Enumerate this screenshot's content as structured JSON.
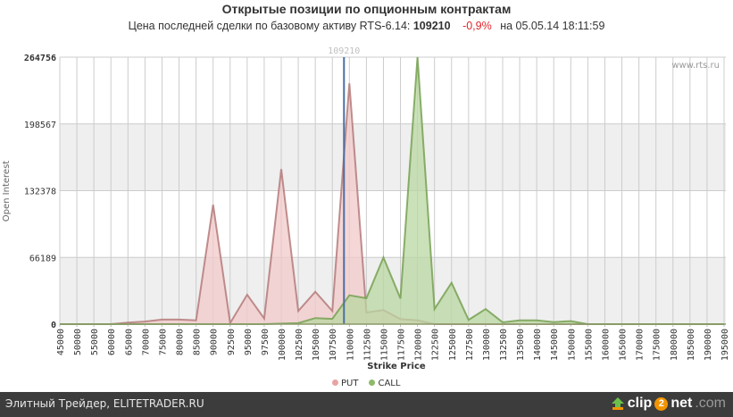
{
  "header": {
    "title": "Открытые позиции по опционным контрактам",
    "subtitle_prefix": "Цена последней сделки по базовому активу RTS-6.14:",
    "last_price": "109210",
    "change": "-0,9%",
    "timestamp_prefix": "на",
    "timestamp": "05.05.14 18:11:59"
  },
  "watermark": "www.rts.ru",
  "footer": {
    "caption": "Элитный Трейдер, ELITETRADER.RU",
    "brand_a": "clip",
    "brand_2": "2",
    "brand_b": "net",
    "brand_c": ".com"
  },
  "legend": {
    "put": "PUT",
    "call": "CALL"
  },
  "colors": {
    "put_fill": "#f2c9c9",
    "put_line": "#b57a7a",
    "call_fill": "#b9d7a1",
    "call_line": "#77a152",
    "price_line": "#4a6fa5",
    "band": "#efefef",
    "grid": "#cccccc"
  },
  "chart_data": {
    "type": "area",
    "title": "Открытые позиции по опционным контрактам",
    "subtitle": "Цена последней сделки по базовому активу RTS-6.14: 109210 -0,9% на 05.05.14 18:11:59",
    "xlabel": "Strike Price",
    "ylabel": "Open Interest",
    "ylim": [
      0,
      264756
    ],
    "yticks": [
      0,
      66189,
      132378,
      198567,
      264756
    ],
    "grid": true,
    "legend_position": "bottom",
    "plot_line": {
      "value": 109210,
      "label": "109210"
    },
    "categories": [
      45000,
      50000,
      55000,
      60000,
      65000,
      70000,
      75000,
      80000,
      85000,
      90000,
      92500,
      95000,
      97500,
      100000,
      102500,
      105000,
      107500,
      110000,
      112500,
      115000,
      117500,
      120000,
      122500,
      125000,
      127500,
      130000,
      132500,
      135000,
      140000,
      145000,
      150000,
      155000,
      160000,
      165000,
      170000,
      175000,
      180000,
      185000,
      190000,
      195000
    ],
    "series": [
      {
        "name": "PUT",
        "values": [
          0,
          0,
          0,
          0,
          1500,
          2500,
          4500,
          4500,
          3800,
          118400,
          1000,
          29200,
          5600,
          153800,
          13000,
          32100,
          13000,
          238800,
          11500,
          13900,
          5000,
          3800,
          0,
          0,
          0,
          0,
          0,
          0,
          0,
          0,
          0,
          0,
          0,
          0,
          0,
          0,
          0,
          0,
          0,
          0
        ]
      },
      {
        "name": "CALL",
        "values": [
          0,
          0,
          0,
          0,
          0,
          0,
          0,
          0,
          0,
          0,
          0,
          0,
          0,
          500,
          1000,
          6000,
          5200,
          28600,
          25700,
          66100,
          25400,
          264756,
          15000,
          41000,
          4200,
          15000,
          1800,
          3800,
          3800,
          2000,
          3000,
          0,
          0,
          0,
          0,
          0,
          0,
          0,
          0,
          0
        ]
      }
    ]
  }
}
